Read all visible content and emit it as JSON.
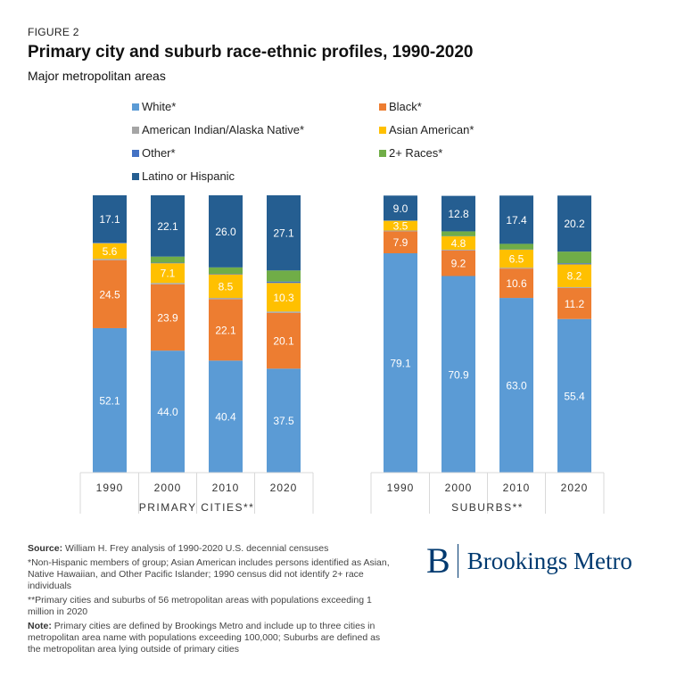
{
  "figure_label": "FIGURE 2",
  "chart_data": {
    "type": "bar",
    "stacked": true,
    "title": "Primary city and suburb race-ethnic profiles, 1990-2020",
    "subtitle": "Major metropolitan areas",
    "ylim": [
      0,
      100
    ],
    "grid": false,
    "legend": {
      "placement": "top",
      "entries": [
        {
          "key": "white",
          "label": "White*",
          "color": "#5b9bd5"
        },
        {
          "key": "black",
          "label": "Black*",
          "color": "#ed7d31"
        },
        {
          "key": "aian",
          "label": "American Indian/Alaska Native*",
          "color": "#a5a5a5"
        },
        {
          "key": "asian",
          "label": "Asian American*",
          "color": "#ffc000"
        },
        {
          "key": "other",
          "label": "Other*",
          "color": "#4472c4"
        },
        {
          "key": "multi",
          "label": "2+ Races*",
          "color": "#70ad47"
        },
        {
          "key": "latino",
          "label": "Latino or Hispanic",
          "color": "#255e91"
        }
      ]
    },
    "groups": [
      {
        "label": "PRIMARY CITIES**",
        "categories": [
          "1990",
          "2000",
          "2010",
          "2020"
        ],
        "series": [
          {
            "key": "white",
            "name": "White*",
            "values": [
              52.1,
              44.0,
              40.4,
              37.5
            ]
          },
          {
            "key": "black",
            "name": "Black*",
            "values": [
              24.5,
              23.9,
              22.1,
              20.1
            ]
          },
          {
            "key": "aian",
            "name": "American Indian/Alaska Native*",
            "values": [
              0.5,
              0.5,
              0.5,
              0.5
            ]
          },
          {
            "key": "asian",
            "name": "Asian American*",
            "values": [
              5.6,
              7.1,
              8.5,
              10.3
            ]
          },
          {
            "key": "other",
            "name": "Other*",
            "values": [
              0.2,
              0.2,
              0.2,
              0.5
            ]
          },
          {
            "key": "multi",
            "name": "2+ Races*",
            "values": [
              0,
              2.2,
              2.3,
              4.0
            ]
          },
          {
            "key": "latino",
            "name": "Latino or Hispanic",
            "values": [
              17.1,
              22.1,
              26.0,
              27.1
            ]
          }
        ]
      },
      {
        "label": "SUBURBS**",
        "categories": [
          "1990",
          "2000",
          "2010",
          "2020"
        ],
        "series": [
          {
            "key": "white",
            "name": "White*",
            "values": [
              79.1,
              70.9,
              63.0,
              55.4
            ]
          },
          {
            "key": "black",
            "name": "Black*",
            "values": [
              7.9,
              9.2,
              10.6,
              11.2
            ]
          },
          {
            "key": "aian",
            "name": "American Indian/Alaska Native*",
            "values": [
              0.3,
              0.3,
              0.3,
              0.3
            ]
          },
          {
            "key": "asian",
            "name": "Asian American*",
            "values": [
              3.5,
              4.8,
              6.5,
              8.2
            ]
          },
          {
            "key": "other",
            "name": "Other*",
            "values": [
              0.1,
              0.1,
              0.1,
              0.4
            ]
          },
          {
            "key": "multi",
            "name": "2+ Races*",
            "values": [
              0,
              1.7,
              2.0,
              4.2
            ]
          },
          {
            "key": "latino",
            "name": "Latino or Hispanic",
            "values": [
              9.0,
              12.8,
              17.4,
              20.2
            ]
          }
        ]
      }
    ],
    "labeled_series": [
      "white",
      "black",
      "asian",
      "latino"
    ]
  },
  "notes": {
    "source_label": "Source:",
    "source_text": "William H. Frey analysis of 1990-2020 U.S. decennial censuses",
    "footnote1": "*Non-Hispanic members of group; Asian American includes persons identified as Asian, Native Hawaiian, and Other Pacific Islander; 1990 census did not identify 2+ race individuals",
    "footnote2": "**Primary cities and suburbs of 56 metropolitan areas with populations exceeding 1 million in 2020",
    "note_label": "Note:",
    "note_text": "Primary cities are defined by Brookings Metro and include up to three cities in metropolitan area name with populations exceeding 100,000; Suburbs are defined as the metropolitan area lying outside of primary cities"
  },
  "logo": {
    "mark": "B",
    "text": "Brookings Metro"
  }
}
